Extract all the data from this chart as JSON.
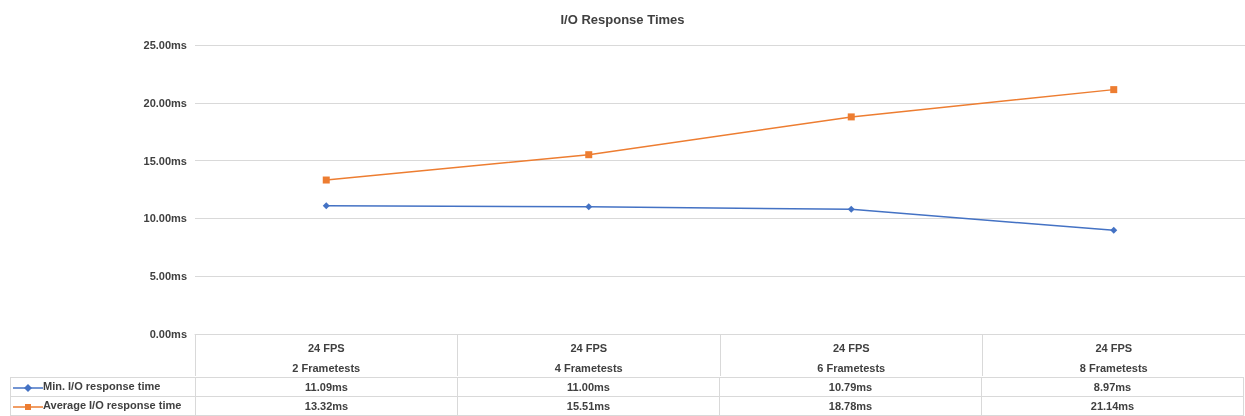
{
  "chart_data": {
    "type": "line",
    "title": "I/O Response Times",
    "categories": [
      "24 FPS\n2 Frametests",
      "24 FPS\n4 Frametests",
      "24 FPS\n6 Frametests",
      "24 FPS\n8 Frametests"
    ],
    "series": [
      {
        "name": "Min. I/O response time",
        "color": "#4472c4",
        "marker": "diamond",
        "values": [
          11.09,
          11.0,
          10.79,
          8.97
        ],
        "value_labels": [
          "11.09ms",
          "11.00ms",
          "10.79ms",
          "8.97ms"
        ]
      },
      {
        "name": "Average I/O response time",
        "color": "#ed7d31",
        "marker": "square",
        "values": [
          13.32,
          15.51,
          18.78,
          21.14
        ],
        "value_labels": [
          "13.32ms",
          "15.51ms",
          "18.78ms",
          "21.14ms"
        ]
      }
    ],
    "ylim": [
      0,
      25
    ],
    "yticks": [
      {
        "value": 0,
        "label": "0.00ms"
      },
      {
        "value": 5,
        "label": "5.00ms"
      },
      {
        "value": 10,
        "label": "10.00ms"
      },
      {
        "value": 15,
        "label": "15.00ms"
      },
      {
        "value": 20,
        "label": "20.00ms"
      },
      {
        "value": 25,
        "label": "25.00ms"
      }
    ],
    "grid": "y",
    "legend": "bottom"
  }
}
